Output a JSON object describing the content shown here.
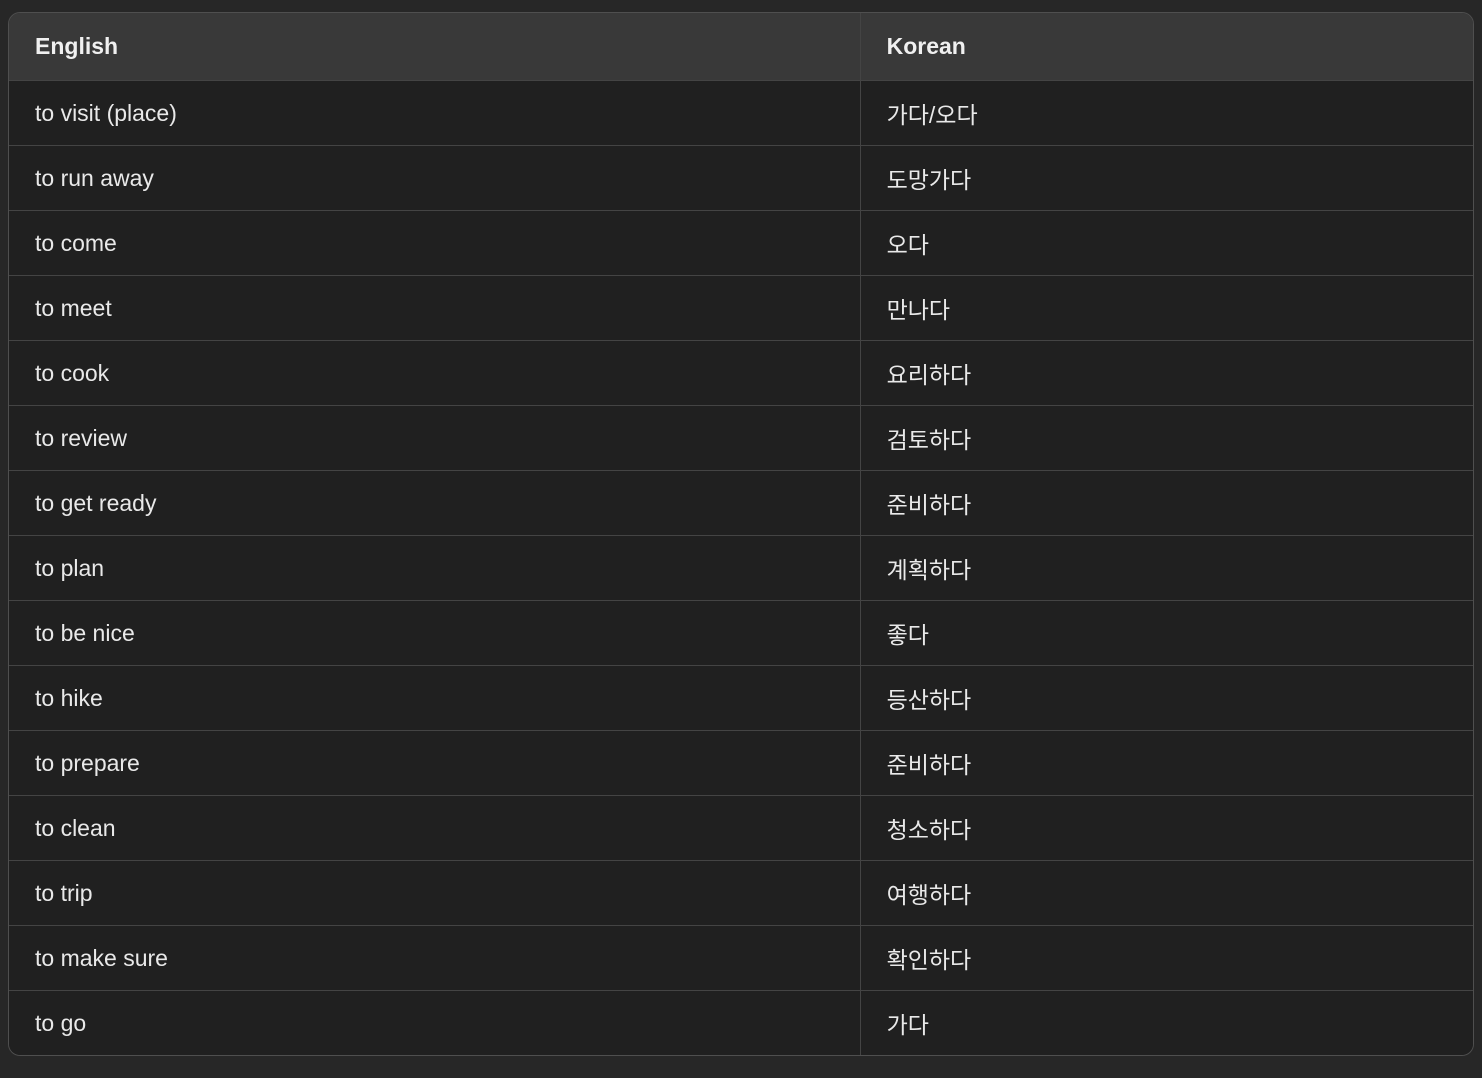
{
  "table": {
    "columns": [
      "English",
      "Korean"
    ],
    "rows": [
      {
        "english": "to visit (place)",
        "korean": "가다/오다"
      },
      {
        "english": "to run away",
        "korean": "도망가다"
      },
      {
        "english": "to come",
        "korean": "오다"
      },
      {
        "english": "to meet",
        "korean": "만나다"
      },
      {
        "english": "to cook",
        "korean": "요리하다"
      },
      {
        "english": "to review",
        "korean": "검토하다"
      },
      {
        "english": "to get ready",
        "korean": "준비하다"
      },
      {
        "english": "to plan",
        "korean": "계획하다"
      },
      {
        "english": "to be nice",
        "korean": "좋다"
      },
      {
        "english": "to hike",
        "korean": "등산하다"
      },
      {
        "english": "to prepare",
        "korean": "준비하다"
      },
      {
        "english": "to clean",
        "korean": "청소하다"
      },
      {
        "english": "to trip",
        "korean": "여행하다"
      },
      {
        "english": "to make sure",
        "korean": "확인하다"
      },
      {
        "english": "to go",
        "korean": "가다"
      }
    ]
  },
  "colors": {
    "page_bg": "#272727",
    "header_bg": "#393939",
    "cell_bg": "#202020",
    "border": "#4f4f4f",
    "divider": "#444444",
    "text": "#e9e9e9",
    "header_text": "#f0f0f0"
  }
}
